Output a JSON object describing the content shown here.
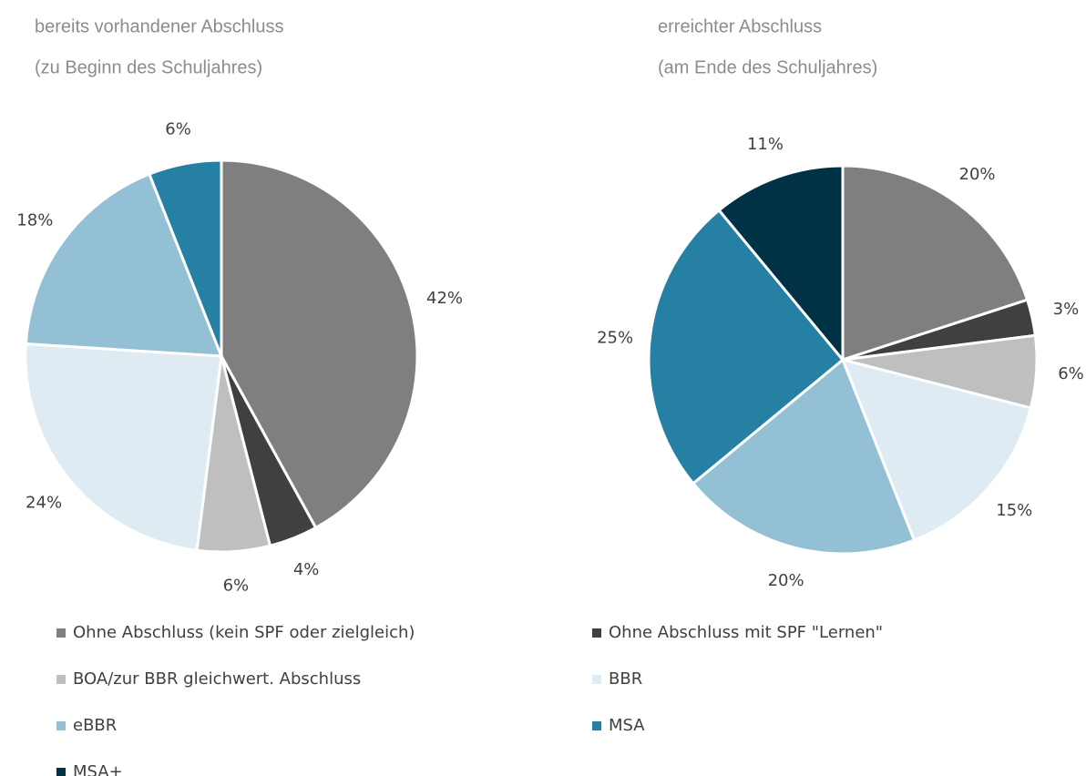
{
  "legend": {
    "labels": [
      "Ohne Abschluss (kein SPF oder zielgleich)",
      "Ohne Abschluss mit SPF \"Lernen\"",
      "BOA/zur BBR gleichwert. Abschluss",
      "BBR",
      "eBBR",
      "MSA",
      "MSA+"
    ],
    "colors": [
      "#7f7f7f",
      "#404040",
      "#bfbfbf",
      "#deebf2",
      "#93c0d5",
      "#2680a4",
      "#003145"
    ]
  },
  "chart_data": [
    {
      "type": "pie",
      "title": "bereits vorhandener Abschluss",
      "subtitle": "(zu Beginn des Schuljahres)",
      "values": [
        42,
        4,
        6,
        24,
        18,
        6
      ],
      "value_labels": [
        "42%",
        "4%",
        "6%",
        "24%",
        "18%",
        "6%"
      ]
    },
    {
      "type": "pie",
      "title": "erreichter Abschluss",
      "subtitle": "(am Ende des Schuljahres)",
      "values": [
        20,
        3,
        6,
        15,
        20,
        25,
        11
      ],
      "value_labels": [
        "20%",
        "3%",
        "6%",
        "15%",
        "20%",
        "25%",
        "11%"
      ]
    }
  ]
}
